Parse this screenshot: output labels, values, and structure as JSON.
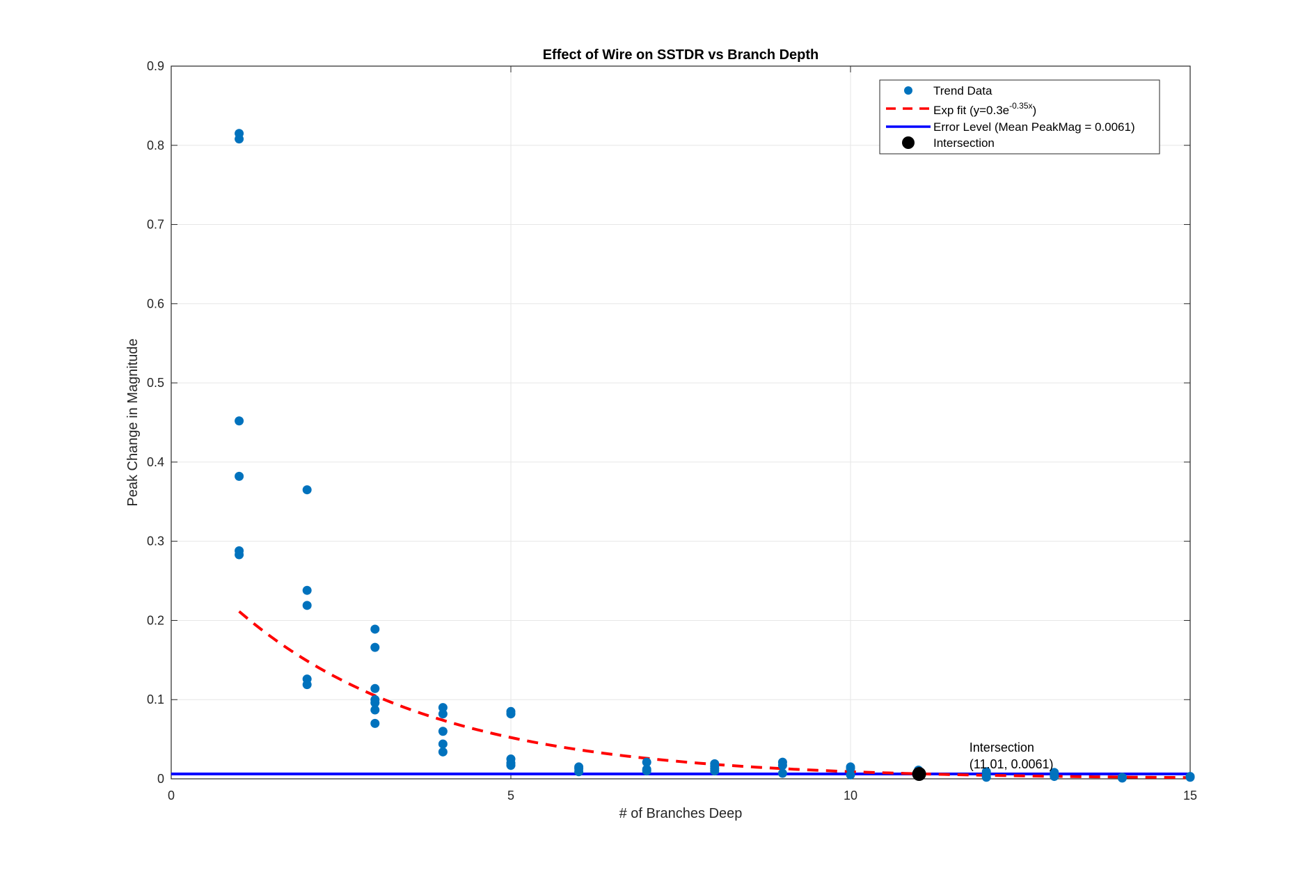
{
  "chart_data": {
    "type": "scatter",
    "title": "Effect of Wire on SSTDR vs Branch Depth",
    "xlabel": "# of Branches Deep",
    "ylabel": "Peak Change in Magnitude",
    "xlim": [
      0,
      15
    ],
    "ylim": [
      0,
      0.9
    ],
    "xticks": [
      "0",
      "5",
      "10",
      "15"
    ],
    "yticks": [
      "0",
      "0.1",
      "0.2",
      "0.3",
      "0.4",
      "0.5",
      "0.6",
      "0.7",
      "0.8",
      "0.9"
    ],
    "grid": true,
    "legend_position": "top-right",
    "series": [
      {
        "name": "Trend Data",
        "kind": "scatter",
        "color": "#0072BD",
        "points": [
          [
            1,
            0.815
          ],
          [
            1,
            0.808
          ],
          [
            1,
            0.452
          ],
          [
            1,
            0.382
          ],
          [
            1,
            0.288
          ],
          [
            1,
            0.283
          ],
          [
            2,
            0.365
          ],
          [
            2,
            0.238
          ],
          [
            2,
            0.219
          ],
          [
            2,
            0.126
          ],
          [
            2,
            0.119
          ],
          [
            3,
            0.189
          ],
          [
            3,
            0.166
          ],
          [
            3,
            0.114
          ],
          [
            3,
            0.1
          ],
          [
            3,
            0.096
          ],
          [
            3,
            0.087
          ],
          [
            3,
            0.07
          ],
          [
            4,
            0.09
          ],
          [
            4,
            0.082
          ],
          [
            4,
            0.06
          ],
          [
            4,
            0.044
          ],
          [
            4,
            0.034
          ],
          [
            5,
            0.085
          ],
          [
            5,
            0.082
          ],
          [
            5,
            0.025
          ],
          [
            5,
            0.02
          ],
          [
            5,
            0.017
          ],
          [
            6,
            0.015
          ],
          [
            6,
            0.013
          ],
          [
            6,
            0.009
          ],
          [
            7,
            0.021
          ],
          [
            7,
            0.012
          ],
          [
            7,
            0.01
          ],
          [
            8,
            0.019
          ],
          [
            8,
            0.016
          ],
          [
            8,
            0.013
          ],
          [
            8,
            0.01
          ],
          [
            9,
            0.021
          ],
          [
            9,
            0.017
          ],
          [
            9,
            0.007
          ],
          [
            10,
            0.015
          ],
          [
            10,
            0.013
          ],
          [
            10,
            0.005
          ],
          [
            11,
            0.011
          ],
          [
            11,
            0.008
          ],
          [
            11,
            0.005
          ],
          [
            12,
            0.009
          ],
          [
            12,
            0.005
          ],
          [
            12,
            0.002
          ],
          [
            13,
            0.008
          ],
          [
            13,
            0.005
          ],
          [
            13,
            0.003
          ],
          [
            14,
            0.002
          ],
          [
            14,
            0.001
          ],
          [
            15,
            0.003
          ],
          [
            15,
            0.002
          ]
        ]
      },
      {
        "name": "Exp fit (y=0.3e^{-0.35x})",
        "kind": "line",
        "style": "dashed",
        "color": "#FF0000",
        "a": 0.3,
        "b": -0.35,
        "x_range": [
          1,
          15
        ]
      },
      {
        "name": "Error Level (Mean PeakMag = 0.0061)",
        "kind": "hline",
        "color": "#0000FF",
        "y": 0.0061
      },
      {
        "name": "Intersection",
        "kind": "marker",
        "color": "#000000",
        "x": 11.01,
        "y": 0.0061
      }
    ],
    "legend": [
      {
        "label": "Trend Data"
      },
      {
        "label_main": "Exp fit (y=0.3e",
        "label_sup": "-0.35x",
        "label_end": ")"
      },
      {
        "label": "Error Level (Mean PeakMag = 0.0061)"
      },
      {
        "label": "Intersection"
      }
    ],
    "annotation": {
      "line1": "Intersection",
      "line2": "(11.01, 0.0061)",
      "x": 11.75,
      "y": 0.0061
    }
  }
}
